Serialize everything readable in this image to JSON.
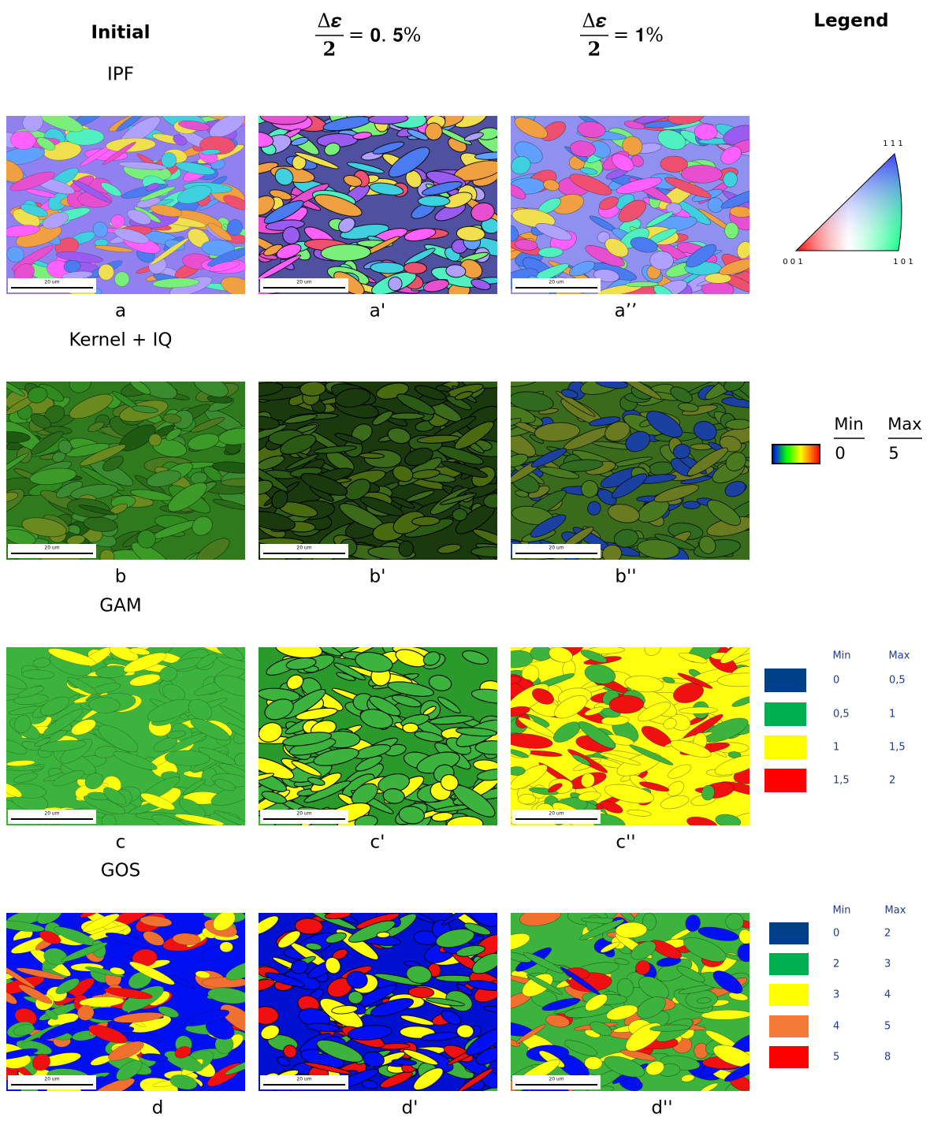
{
  "header": {
    "columns": [
      {
        "title": "Initial"
      },
      {
        "numerator": "Δ𝜺",
        "denominator": "2",
        "rhs": "= 𝟎. 𝟓%"
      },
      {
        "numerator": "Δ𝜺",
        "denominator": "2",
        "rhs": "= 𝟏%"
      },
      {
        "title": "Legend"
      }
    ]
  },
  "rows": [
    {
      "label": "IPF",
      "panels": [
        "a",
        "a'",
        "a’’"
      ]
    },
    {
      "label": "Kernel + IQ",
      "panels": [
        "b",
        "b'",
        "b''"
      ]
    },
    {
      "label": "GAM",
      "panels": [
        "c",
        "c'",
        "c''"
      ]
    },
    {
      "label": "GOS",
      "panels": [
        "d",
        "d'",
        "d''"
      ]
    }
  ],
  "scale_bar": "20 um",
  "legends": {
    "ipf": {
      "corners": [
        "1 1 1",
        "0 0 1",
        "1 0 1"
      ]
    },
    "kernel": {
      "min_label": "Min",
      "max_label": "Max",
      "min": "0",
      "max": "5"
    },
    "gam": {
      "headers": [
        "Min",
        "Max"
      ],
      "rows": [
        {
          "color": "#003f8a",
          "min": "0",
          "max": "0,5"
        },
        {
          "color": "#00b050",
          "min": "0,5",
          "max": "1"
        },
        {
          "color": "#ffff00",
          "min": "1",
          "max": "1,5"
        },
        {
          "color": "#ff0000",
          "min": "1,5",
          "max": "2"
        }
      ]
    },
    "gos": {
      "headers": [
        "Min",
        "Max"
      ],
      "rows": [
        {
          "color": "#003f8a",
          "min": "0",
          "max": "2"
        },
        {
          "color": "#00b050",
          "min": "2",
          "max": "3"
        },
        {
          "color": "#ffff00",
          "min": "3",
          "max": "4"
        },
        {
          "color": "#f47a3a",
          "min": "4",
          "max": "5"
        },
        {
          "color": "#ff0000",
          "min": "5",
          "max": "8"
        }
      ]
    }
  }
}
